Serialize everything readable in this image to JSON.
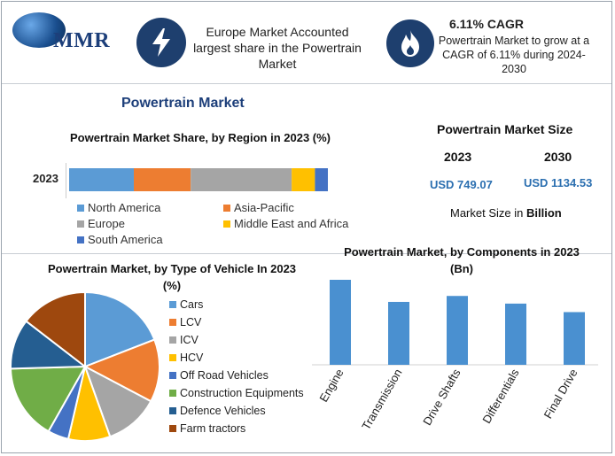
{
  "brand": {
    "logo_text": "MMR"
  },
  "header": {
    "card1_text": "Europe Market Accounted largest share in the Powertrain Market",
    "card2_title": "6.11% CAGR",
    "card2_text": "Powertrain Market to grow at a CAGR of 6.11% during 2024-2030"
  },
  "main_title": "Powertrain Market",
  "size_panel": {
    "title": "Powertrain Market Size",
    "year1": "2023",
    "year2": "2030",
    "value1": "USD 749.07",
    "value2": "USD 1134.53",
    "note_prefix": "Market Size in ",
    "note_bold": "Billion"
  },
  "colors": {
    "accent": "#1e3f6e",
    "title_blue": "#1d3f7a",
    "bar_blue": "#4a90d0",
    "value_blue": "#2b6fb0"
  },
  "chart_data": [
    {
      "type": "bar",
      "stacked": true,
      "orientation": "horizontal",
      "title": "Powertrain Market Share, by Region in 2023 (%)",
      "categories": [
        "2023"
      ],
      "series": [
        {
          "name": "North America",
          "values": [
            25
          ],
          "color": "#5b9bd5"
        },
        {
          "name": "Asia-Pacific",
          "values": [
            22
          ],
          "color": "#ed7d31"
        },
        {
          "name": "Europe",
          "values": [
            39
          ],
          "color": "#a5a5a5"
        },
        {
          "name": "Middle East and Africa",
          "values": [
            9
          ],
          "color": "#ffc000"
        },
        {
          "name": "South America",
          "values": [
            5
          ],
          "color": "#4472c4"
        }
      ],
      "legend": "bottom"
    },
    {
      "type": "pie",
      "title": "Powertrain Market, by Type of Vehicle In 2023 (%)",
      "categories": [
        "Cars",
        "LCV",
        "ICV",
        "HCV",
        "Off Road Vehicles",
        "Construction Equipments",
        "Defence Vehicles",
        "Farm tractors"
      ],
      "values": [
        21,
        15,
        13,
        10,
        5,
        18,
        12,
        16
      ],
      "colors": [
        "#5b9bd5",
        "#ed7d31",
        "#a5a5a5",
        "#ffc000",
        "#4472c4",
        "#70ad47",
        "#255e91",
        "#9e480e"
      ],
      "legend": "right"
    },
    {
      "type": "bar",
      "title": "Powertrain Market, by Components in 2023 (Bn)",
      "categories": [
        "Engine",
        "Transmission",
        "Drive Shafts",
        "Differentials",
        "Final Drive"
      ],
      "values": [
        100,
        74,
        81,
        72,
        62
      ],
      "grid": false,
      "legend": "none"
    }
  ]
}
